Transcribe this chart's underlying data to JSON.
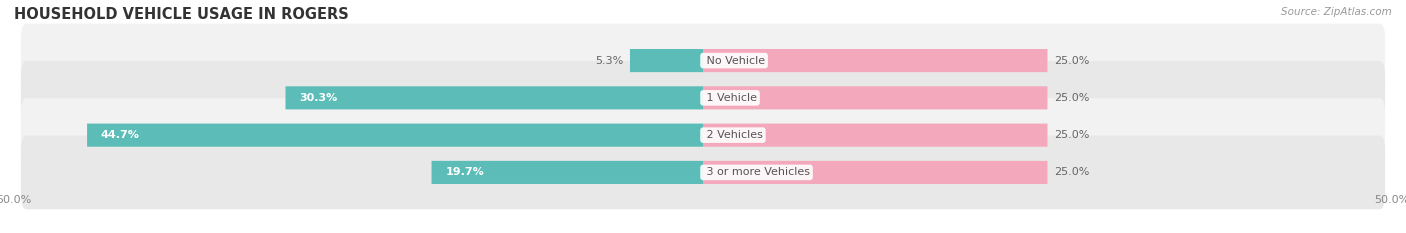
{
  "title": "HOUSEHOLD VEHICLE USAGE IN ROGERS",
  "source": "Source: ZipAtlas.com",
  "categories": [
    "No Vehicle",
    "1 Vehicle",
    "2 Vehicles",
    "3 or more Vehicles"
  ],
  "owner_values": [
    5.3,
    30.3,
    44.7,
    19.7
  ],
  "renter_values": [
    25.0,
    25.0,
    25.0,
    25.0
  ],
  "owner_color": "#5bbcb8",
  "renter_color": "#f4a8bc",
  "title_fontsize": 10.5,
  "source_fontsize": 7.5,
  "label_fontsize": 8,
  "cat_fontsize": 8,
  "tick_fontsize": 8,
  "bar_height": 0.62,
  "x_min": 0.0,
  "x_max": 100.0,
  "figsize": [
    14.06,
    2.33
  ],
  "dpi": 100,
  "row_colors": [
    "#f2f2f2",
    "#e8e8e8"
  ]
}
